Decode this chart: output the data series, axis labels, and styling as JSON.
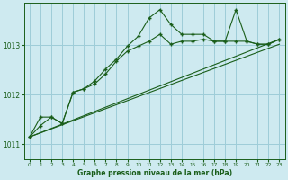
{
  "background_color": "#ceeaf0",
  "grid_color": "#9ecdd8",
  "line_color": "#1a5e1a",
  "title": "Graphe pression niveau de la mer (hPa)",
  "ylim": [
    1010.7,
    1013.85
  ],
  "xlim": [
    -0.5,
    23.5
  ],
  "yticks": [
    1011,
    1012,
    1013
  ],
  "xticks": [
    0,
    1,
    2,
    3,
    4,
    5,
    6,
    7,
    8,
    9,
    10,
    11,
    12,
    13,
    14,
    15,
    16,
    17,
    18,
    19,
    20,
    21,
    22,
    23
  ],
  "series1_x": [
    0,
    1,
    2,
    3,
    4,
    5,
    6,
    7,
    8,
    9,
    10,
    11,
    12,
    13,
    14,
    15,
    16,
    17,
    18,
    19,
    20,
    21,
    22,
    23
  ],
  "series1_y": [
    1011.15,
    1011.55,
    1011.55,
    1011.42,
    1012.05,
    1012.12,
    1012.28,
    1012.52,
    1012.72,
    1012.98,
    1013.18,
    1013.55,
    1013.72,
    1013.42,
    1013.22,
    1013.22,
    1013.22,
    1013.08,
    1013.08,
    1013.72,
    1013.08,
    1013.02,
    1013.02,
    1013.12
  ],
  "series2_x": [
    0,
    1,
    2,
    3,
    4,
    5,
    6,
    7,
    8,
    9,
    10,
    11,
    12,
    13,
    14,
    15,
    16,
    17,
    18,
    19,
    20,
    21,
    22,
    23
  ],
  "series2_y": [
    1011.15,
    1011.38,
    1011.55,
    1011.42,
    1012.05,
    1012.12,
    1012.22,
    1012.42,
    1012.68,
    1012.88,
    1012.98,
    1013.08,
    1013.22,
    1013.02,
    1013.08,
    1013.08,
    1013.12,
    1013.08,
    1013.08,
    1013.08,
    1013.08,
    1013.02,
    1013.02,
    1013.12
  ],
  "series3_x": [
    0,
    23
  ],
  "series3_y": [
    1011.15,
    1013.12
  ],
  "series4_x": [
    0,
    23
  ],
  "series4_y": [
    1011.15,
    1013.02
  ]
}
